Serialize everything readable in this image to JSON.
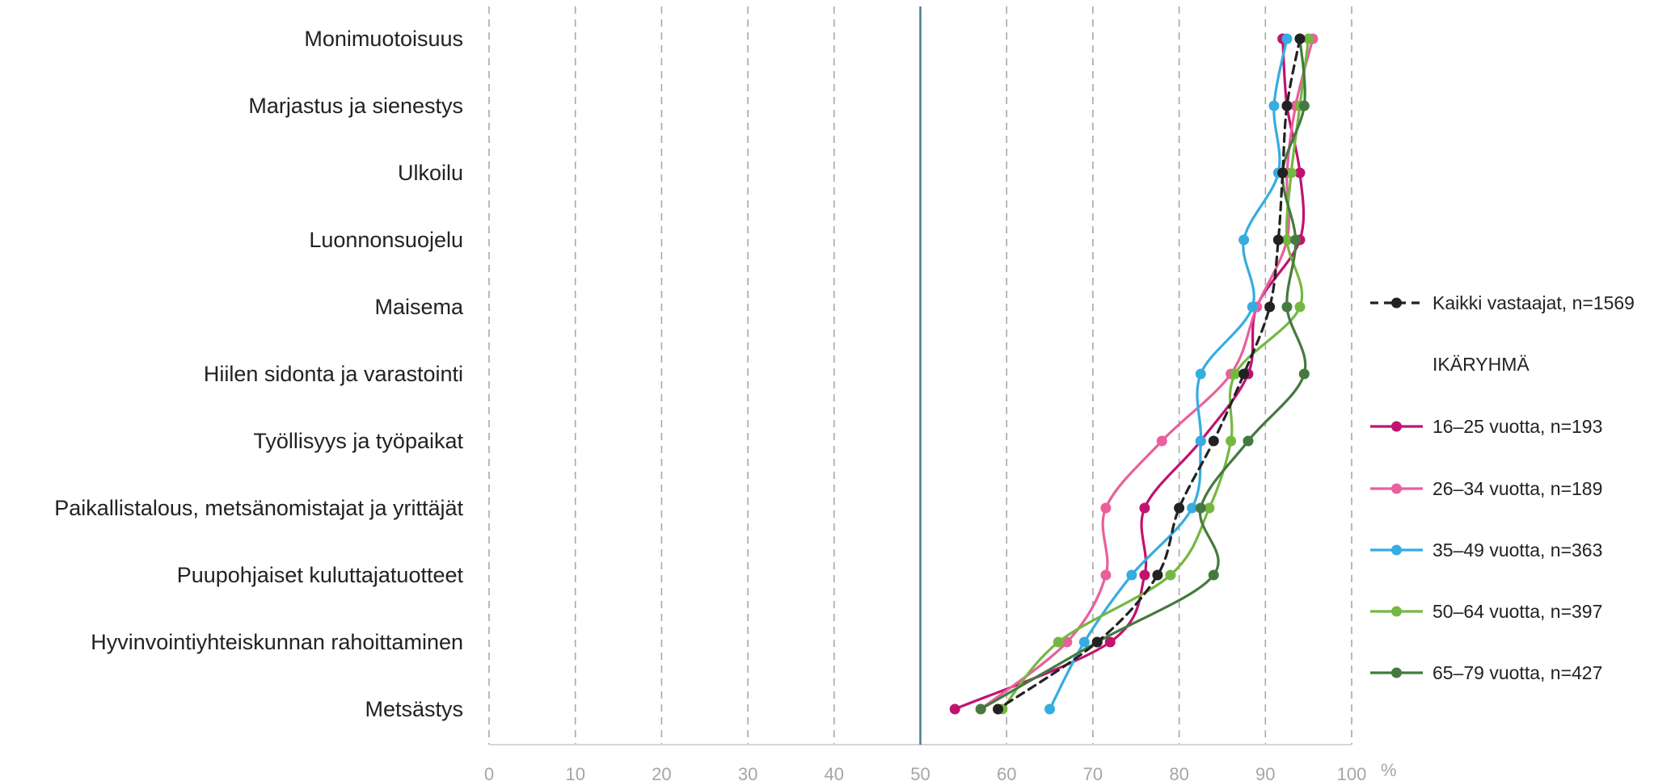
{
  "chart_data": {
    "type": "line",
    "orientation": "horizontal",
    "x_unit": "%",
    "xlim": [
      0,
      100
    ],
    "x_ticks": [
      0,
      10,
      20,
      30,
      40,
      50,
      60,
      70,
      80,
      90,
      100
    ],
    "grid": "vertical dashed",
    "reference_line": 50,
    "categories": [
      "Monimuotoisuus",
      "Marjastus ja sienestys",
      "Ulkoilu",
      "Luonnonsuojelu",
      "Maisema",
      "Hiilen sidonta ja varastointi",
      "Työllisyys ja työpaikat",
      "Paikallistalous, metsänomistajat ja yrittäjät",
      "Puupohjaiset kuluttajatuotteet",
      "Hyvinvointiyhteiskunnan rahoittaminen",
      "Metsästys"
    ],
    "legend_position": "right",
    "legend_group_title": "IKÄRYHMÄ",
    "series": [
      {
        "name": "Kaikki vastaajat, n=1569",
        "color": "#222222",
        "dashed": true,
        "values": [
          94,
          92.5,
          92,
          91.5,
          90.5,
          87.5,
          84,
          80,
          77.5,
          70.5,
          59
        ]
      },
      {
        "name": "16–25 vuotta, n=193",
        "color": "#c0136f",
        "dashed": false,
        "values": [
          92,
          92.5,
          94,
          94,
          89,
          88,
          82.5,
          76,
          76,
          72,
          54
        ]
      },
      {
        "name": "26–34 vuotta, n=189",
        "color": "#ea5f9c",
        "dashed": false,
        "values": [
          95.5,
          93.5,
          92.5,
          92.5,
          89,
          86,
          78,
          71.5,
          71.5,
          67,
          57
        ]
      },
      {
        "name": "35–49 vuotta, n=363",
        "color": "#36ace0",
        "dashed": false,
        "values": [
          92.5,
          91,
          91.5,
          87.5,
          88.5,
          82.5,
          82.5,
          81.5,
          74.5,
          69,
          65
        ]
      },
      {
        "name": "50–64 vuotta, n=397",
        "color": "#74b841",
        "dashed": false,
        "values": [
          95,
          94,
          93,
          92.5,
          94,
          86.5,
          86,
          83.5,
          79,
          66,
          59.5
        ]
      },
      {
        "name": "65–79 vuotta, n=427",
        "color": "#447a3f",
        "dashed": false,
        "values": [
          94,
          94.5,
          92,
          93.5,
          92.5,
          94.5,
          88,
          82.5,
          84,
          70.5,
          57
        ]
      }
    ]
  }
}
